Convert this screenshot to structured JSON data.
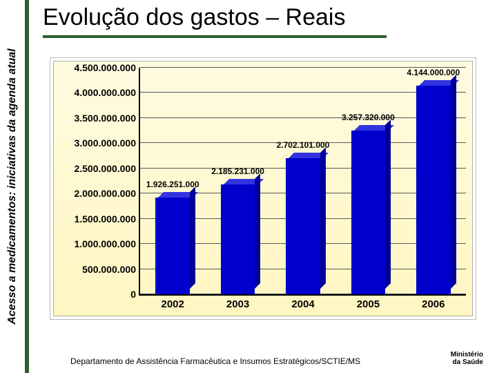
{
  "sidebar": {
    "label": "Acesso a medicamentos: iniciativas da agenda atual"
  },
  "title": "Evolução dos gastos – Reais",
  "footer": {
    "dept": "Departamento de Assistência Farmacêutica e Insumos Estratégicos/SCTIE/MS",
    "logo_line1": "Ministério",
    "logo_line2": "da Saúde"
  },
  "chart": {
    "type": "bar",
    "background_gradient": [
      "#fffbe0",
      "#fff6c2"
    ],
    "frame_border": "#bbbbbb",
    "axis_color": "#000000",
    "grid_color": "#555555",
    "ylim": [
      0,
      4500000000
    ],
    "ytick_step": 500000000,
    "ytick_labels": [
      "0",
      "500.000.000",
      "1.000.000.000",
      "1.500.000.000",
      "2.000.000.000",
      "2.500.000.000",
      "3.000.000.000",
      "3.500.000.000",
      "4.000.000.000",
      "4.500.000.000"
    ],
    "label_fontsize": 14,
    "xlabel_fontsize": 15,
    "value_label_fontsize": 12,
    "bar_color": "#0000cc",
    "bar_top_color": "#3333e0",
    "bar_side_color": "#000099",
    "bar_width_pct": 10.5,
    "categories": [
      "2002",
      "2003",
      "2004",
      "2005",
      "2006"
    ],
    "values": [
      1926251000,
      2185231000,
      2702101000,
      3257320000,
      4144000000
    ],
    "value_labels": [
      "1.926.251.000",
      "2.185.231.000",
      "2.702.101.000",
      "3.257.320.000",
      "4.144.000.000"
    ]
  }
}
